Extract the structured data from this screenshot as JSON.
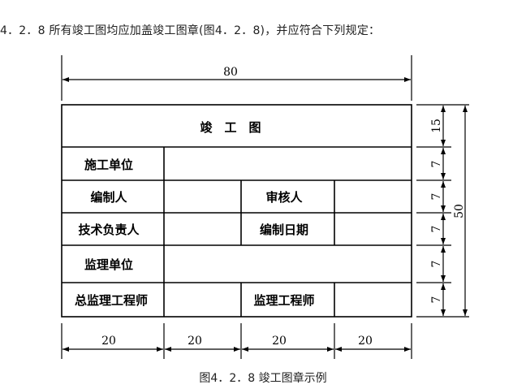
{
  "heading": "4．2．8 所有竣工图均应加盖竣工图章(图4．2．8)，并应符合下列规定：",
  "stamp": {
    "title": "竣　工　图",
    "rows": [
      [
        "施工单位"
      ],
      [
        "编制人",
        "审核人"
      ],
      [
        "技术负责人",
        "编制日期"
      ],
      [
        "监理单位"
      ],
      [
        "总监理工程师",
        "监理工程师"
      ]
    ]
  },
  "dimensions": {
    "total_width": "80",
    "column_widths": [
      "20",
      "20",
      "20",
      "20"
    ],
    "row_heights": [
      "15",
      "7",
      "7",
      "7",
      "7",
      "7"
    ],
    "total_height": "50"
  },
  "caption": "图4．2．8 竣工图章示例"
}
